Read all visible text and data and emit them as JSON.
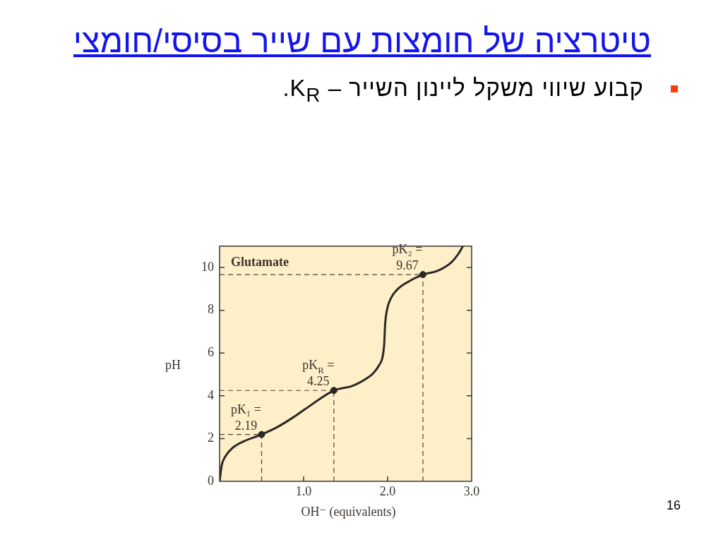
{
  "chart_data": {
    "type": "line",
    "title": "טיטרציה של חומצות עם שייר בסיסי/חומצי",
    "subtitle": "קבוע שיווי משקל ליינון השייר – K$_{R}$.",
    "xlabel": "OH⁻ (equivalents)",
    "ylabel": "pH",
    "xlim": [
      0,
      3
    ],
    "ylim": [
      0,
      11
    ],
    "xticks": [
      {
        "value": 1,
        "label": "1.0"
      },
      {
        "value": 2,
        "label": "2.0"
      },
      {
        "value": 3,
        "label": "3.0"
      }
    ],
    "yticks": [
      0,
      2,
      4,
      6,
      8,
      10
    ],
    "series": [
      {
        "type": "line",
        "color": "#2b2825",
        "marker": "none",
        "x": [
          0,
          0.025,
          0.07,
          0.15,
          0.26,
          0.5,
          0.68,
          0.88,
          1.02,
          1.36,
          1.58,
          1.72,
          1.83,
          1.9,
          1.94,
          1.96,
          1.97,
          1.99,
          2.04,
          2.11,
          2.22,
          2.42,
          2.59,
          2.76,
          2.84,
          2.89
        ],
        "values": [
          0,
          0.74,
          1.17,
          1.55,
          1.82,
          2.19,
          2.52,
          3.0,
          3.38,
          4.25,
          4.46,
          4.74,
          5.06,
          5.44,
          5.82,
          6.46,
          7.33,
          7.98,
          8.57,
          8.95,
          9.28,
          9.67,
          9.84,
          10.25,
          10.63,
          10.95
        ]
      },
      {
        "type": "scatter",
        "color": "#2b2825",
        "marker": "circle",
        "x": [
          0.5,
          1.36,
          2.42
        ],
        "values": [
          2.19,
          4.25,
          9.67
        ]
      }
    ],
    "ref_lines": [
      {
        "axis": "y",
        "value": 2.19,
        "color": "#4a4540",
        "line_style": "dashed"
      },
      {
        "axis": "x",
        "value": 0.5,
        "color": "#4a4540",
        "line_style": "dashed"
      },
      {
        "axis": "y",
        "value": 4.25,
        "color": "#4a4540",
        "line_style": "dashed"
      },
      {
        "axis": "x",
        "value": 1.36,
        "color": "#4a4540",
        "line_style": "dashed"
      },
      {
        "axis": "y",
        "value": 9.67,
        "color": "#4a4540",
        "line_style": "dashed"
      },
      {
        "axis": "x",
        "value": 2.42,
        "color": "#4a4540",
        "line_style": "dashed"
      }
    ],
    "annotations": [
      "Glutamate",
      {
        "text": "pK₁ =\n2.19",
        "x": 0.5,
        "y": 2.19
      },
      {
        "text": "pK$_{R}$ =\n4.25",
        "x": 1.36,
        "y": 4.25
      },
      {
        "text": "pK₂ =\n9.67",
        "x": 2.42,
        "y": 9.67
      },
      "16"
    ]
  }
}
